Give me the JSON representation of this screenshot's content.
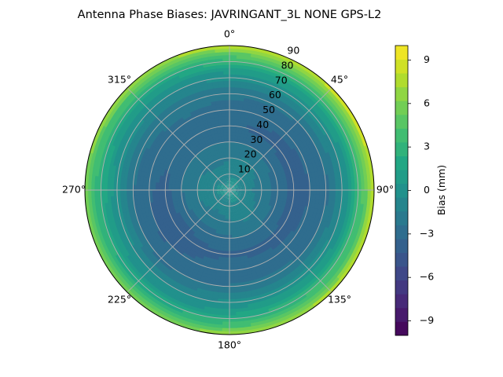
{
  "chart_data": {
    "type": "heatmap",
    "projection": "polar",
    "title": "Antenna Phase Biases: JAVRINGANT_3L   NONE GPS-L2",
    "angular_axis": {
      "zero_location": "top",
      "direction": "clockwise",
      "tick_labels": [
        "0°",
        "45°",
        "90°",
        "135°",
        "180°",
        "225°",
        "270°",
        "315°"
      ],
      "tick_values": [
        0,
        45,
        90,
        135,
        180,
        225,
        270,
        315
      ]
    },
    "radial_axis": {
      "range": [
        0,
        90
      ],
      "tick_values": [
        10,
        20,
        30,
        40,
        50,
        60,
        70,
        80,
        90
      ],
      "tick_labels": [
        "10",
        "20",
        "30",
        "40",
        "50",
        "60",
        "70",
        "80",
        "90"
      ],
      "label_angle_deg": 22.5
    },
    "grid": true,
    "colorbar": {
      "label": "Bias (mm)",
      "range": [
        -10,
        10
      ],
      "levels": 21,
      "colormap": "viridis",
      "tick_values": [
        -9,
        -6,
        -3,
        0,
        3,
        6,
        9
      ],
      "tick_labels": [
        "−9",
        "−6",
        "−3",
        "0",
        "3",
        "6",
        "9"
      ]
    },
    "field_samples": {
      "radius_deg": [
        0,
        20,
        40,
        60,
        75,
        85,
        90
      ],
      "bias_mm": [
        0.0,
        -1.5,
        -3.2,
        -2.2,
        0.8,
        4.5,
        7.5
      ],
      "note_azimuth_deg": [
        90,
        225
      ],
      "azimuth_peak_bias_mm": [
        -3.8,
        -3.8
      ]
    }
  }
}
